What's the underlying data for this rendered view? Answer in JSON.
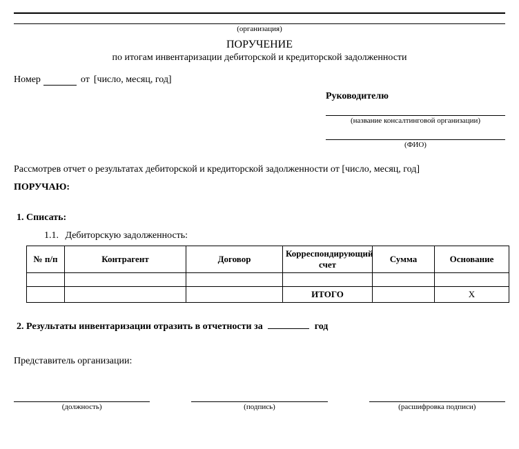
{
  "org_caption": "(организация)",
  "title": "ПОРУЧЕНИЕ",
  "subtitle": "по итогам инвентаризации дебиторской и кредиторской задолженности",
  "number_label": "Номер",
  "from_label": "от",
  "date_placeholder": "[число, месяц, год]",
  "addressee": "Руководителю",
  "consulting_caption": "(название консалтинговой организации)",
  "fio_caption": "(ФИО)",
  "reviewed_text_pre": "Рассмотрев отчет о результатах дебиторской и кредиторской задолженности от ",
  "reviewed_date": "[число, месяц, год]",
  "order_word": "ПОРУЧАЮ:",
  "sections": {
    "s1": "Списать:",
    "s1_1_num": "1.1.",
    "s1_1": "Дебиторскую задолженность:",
    "s2_pre": "Результаты инвентаризации отразить в отчетности за",
    "s2_post": "год"
  },
  "table": {
    "headers": [
      "№ п/п",
      "Контрагент",
      "Договор",
      "Корреспондирующий счет",
      "Сумма",
      "Основание"
    ],
    "col_widths": [
      "55px",
      "176px",
      "140px",
      "130px",
      "90px",
      "108px"
    ],
    "itogo": "ИТОГО",
    "x": "Х"
  },
  "rep_label": "Представитель организации:",
  "signatures": [
    "(должность)",
    "(подпись)",
    "(расшифровка подписи)"
  ]
}
